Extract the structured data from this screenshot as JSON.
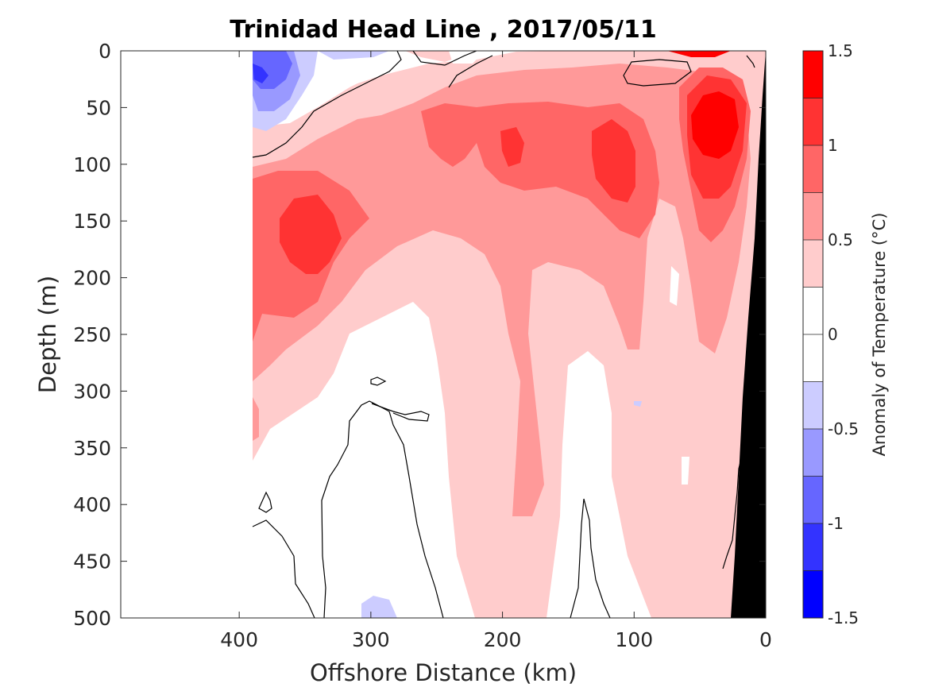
{
  "chart_data": {
    "type": "heatmap",
    "title": "Trinidad Head Line , 2017/05/11",
    "xlabel": "Offshore Distance (km)",
    "ylabel": "Depth (m)",
    "xlim": [
      490,
      0
    ],
    "ylim": [
      0,
      500
    ],
    "x_ticks": [
      "400",
      "300",
      "200",
      "100",
      "0"
    ],
    "x_tick_values": [
      400,
      300,
      200,
      100,
      0
    ],
    "y_ticks": [
      "0",
      "50",
      "100",
      "150",
      "200",
      "250",
      "300",
      "350",
      "400",
      "450",
      "500"
    ],
    "y_tick_values": [
      0,
      50,
      100,
      150,
      200,
      250,
      300,
      350,
      400,
      450,
      500
    ],
    "colorbar": {
      "label": "Anomaly of Temperature (°C)",
      "ticks": [
        "1.5",
        "1",
        "0.5",
        "0",
        "-0.5",
        "-1",
        "-1.5"
      ],
      "tick_values": [
        1.5,
        1,
        0.5,
        0,
        -0.5,
        -1,
        -1.5
      ],
      "range": [
        -1.5,
        1.5
      ],
      "levels": [
        {
          "min": 1.25,
          "max": 1.5,
          "color": "#ff0000"
        },
        {
          "min": 1.0,
          "max": 1.25,
          "color": "#ff3333"
        },
        {
          "min": 0.75,
          "max": 1.0,
          "color": "#ff6666"
        },
        {
          "min": 0.5,
          "max": 0.75,
          "color": "#ff9999"
        },
        {
          "min": 0.25,
          "max": 0.5,
          "color": "#ffcccc"
        },
        {
          "min": 0.0,
          "max": 0.25,
          "color": "#ffffff"
        },
        {
          "min": -0.25,
          "max": 0.0,
          "color": "#ffffff"
        },
        {
          "min": -0.5,
          "max": -0.25,
          "color": "#ccccff"
        },
        {
          "min": -0.75,
          "max": -0.5,
          "color": "#9999ff"
        },
        {
          "min": -1.0,
          "max": -0.75,
          "color": "#6666ff"
        },
        {
          "min": -1.25,
          "max": -1.0,
          "color": "#3333ff"
        },
        {
          "min": -1.5,
          "max": -1.25,
          "color": "#0000ff"
        }
      ]
    },
    "features": [
      {
        "name": "Nearshore warm core",
        "x": 35,
        "depth": 75,
        "anomaly": 1.35
      },
      {
        "name": "Offshore warm core",
        "x": 350,
        "depth": 165,
        "anomaly": 1.1
      },
      {
        "name": "Mid-shelf warm core",
        "x": 115,
        "depth": 90,
        "anomaly": 1.1
      },
      {
        "name": "Upper cold patch",
        "x": 375,
        "depth": 30,
        "anomaly": -0.8
      },
      {
        "name": "Deep cold patch",
        "x": 290,
        "depth": 495,
        "anomaly": -0.3
      }
    ],
    "seafloor_color": "#000000"
  }
}
